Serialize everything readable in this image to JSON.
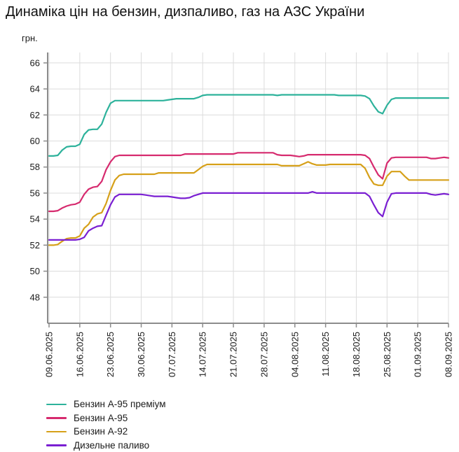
{
  "chart_data": {
    "type": "line",
    "title": "Динаміка цін на бензин, дизпаливо, газ на АЗС України",
    "y_axis_unit_label": "грн.",
    "ylim": [
      46,
      66.8
    ],
    "yticks": [
      48,
      50,
      52,
      54,
      56,
      58,
      60,
      62,
      64,
      66
    ],
    "x_tick_labels": [
      "09.06.2025",
      "16.06.2025",
      "23.06.2025",
      "30.06.2025",
      "07.07.2025",
      "14.07.2025",
      "21.07.2025",
      "28.07.2025",
      "04.08.2025",
      "11.08.2025",
      "18.08.2025",
      "25.08.2025",
      "01.09.2025",
      "08.09.2025"
    ],
    "x_tick_positions": [
      0,
      7,
      14,
      21,
      28,
      35,
      42,
      49,
      56,
      63,
      70,
      77,
      84,
      91
    ],
    "grid": true,
    "legend_position": "bottom-left",
    "colors": {
      "grid": "#dcdcdc",
      "axis": "#8c8c8c",
      "text": "#1a1a1a",
      "background": "#ffffff"
    },
    "series": [
      {
        "name": "Бензин А-95 преміум",
        "color": "#2db29b",
        "values": [
          58.85,
          58.85,
          58.9,
          59.3,
          59.55,
          59.6,
          59.6,
          59.75,
          60.5,
          60.85,
          60.9,
          60.9,
          61.3,
          62.2,
          62.9,
          63.1,
          63.1,
          63.1,
          63.1,
          63.1,
          63.1,
          63.1,
          63.1,
          63.1,
          63.1,
          63.1,
          63.1,
          63.15,
          63.2,
          63.25,
          63.25,
          63.25,
          63.25,
          63.25,
          63.35,
          63.5,
          63.55,
          63.55,
          63.55,
          63.55,
          63.55,
          63.55,
          63.55,
          63.55,
          63.55,
          63.55,
          63.55,
          63.55,
          63.55,
          63.55,
          63.55,
          63.55,
          63.5,
          63.55,
          63.55,
          63.55,
          63.55,
          63.55,
          63.55,
          63.55,
          63.55,
          63.55,
          63.55,
          63.55,
          63.55,
          63.55,
          63.5,
          63.5,
          63.5,
          63.5,
          63.5,
          63.5,
          63.45,
          63.25,
          62.7,
          62.25,
          62.1,
          62.75,
          63.2,
          63.3,
          63.3,
          63.3,
          63.3,
          63.3,
          63.3,
          63.3,
          63.3,
          63.3,
          63.3,
          63.3,
          63.3,
          63.3
        ]
      },
      {
        "name": "Бензин А-95",
        "color": "#d62a6e",
        "values": [
          54.6,
          54.6,
          54.65,
          54.85,
          55.0,
          55.1,
          55.15,
          55.3,
          55.9,
          56.3,
          56.45,
          56.5,
          56.9,
          57.8,
          58.4,
          58.8,
          58.9,
          58.9,
          58.9,
          58.9,
          58.9,
          58.9,
          58.9,
          58.9,
          58.9,
          58.9,
          58.9,
          58.9,
          58.9,
          58.9,
          58.9,
          59.0,
          59.0,
          59.0,
          59.0,
          59.0,
          59.0,
          59.0,
          59.0,
          59.0,
          59.0,
          59.0,
          59.0,
          59.1,
          59.1,
          59.1,
          59.1,
          59.1,
          59.1,
          59.1,
          59.1,
          59.1,
          58.95,
          58.9,
          58.9,
          58.9,
          58.85,
          58.8,
          58.85,
          58.95,
          58.95,
          58.95,
          58.95,
          58.95,
          58.95,
          58.95,
          58.95,
          58.95,
          58.95,
          58.95,
          58.95,
          58.95,
          58.9,
          58.65,
          58.0,
          57.4,
          57.1,
          58.3,
          58.7,
          58.75,
          58.75,
          58.75,
          58.75,
          58.75,
          58.75,
          58.75,
          58.75,
          58.65,
          58.65,
          58.7,
          58.75,
          58.7
        ]
      },
      {
        "name": "Бензин А-92",
        "color": "#d6a019",
        "values": [
          52.0,
          52.0,
          52.05,
          52.3,
          52.5,
          52.55,
          52.55,
          52.7,
          53.3,
          53.6,
          54.15,
          54.4,
          54.5,
          55.2,
          56.2,
          57.0,
          57.35,
          57.45,
          57.45,
          57.45,
          57.45,
          57.45,
          57.45,
          57.45,
          57.45,
          57.55,
          57.55,
          57.55,
          57.55,
          57.55,
          57.55,
          57.55,
          57.55,
          57.55,
          57.8,
          58.05,
          58.2,
          58.2,
          58.2,
          58.2,
          58.2,
          58.2,
          58.2,
          58.2,
          58.2,
          58.2,
          58.2,
          58.2,
          58.2,
          58.2,
          58.2,
          58.2,
          58.2,
          58.1,
          58.1,
          58.1,
          58.1,
          58.1,
          58.25,
          58.4,
          58.25,
          58.15,
          58.15,
          58.15,
          58.2,
          58.2,
          58.2,
          58.2,
          58.2,
          58.2,
          58.2,
          58.2,
          57.9,
          57.2,
          56.7,
          56.6,
          56.6,
          57.3,
          57.65,
          57.65,
          57.65,
          57.3,
          57.0,
          57.0,
          57.0,
          57.0,
          57.0,
          57.0,
          57.0,
          57.0,
          57.0,
          57.0
        ]
      },
      {
        "name": "Дизельне паливо",
        "color": "#7a1fd2",
        "values": [
          52.4,
          52.4,
          52.4,
          52.4,
          52.4,
          52.4,
          52.4,
          52.45,
          52.6,
          53.1,
          53.3,
          53.45,
          53.5,
          54.3,
          55.1,
          55.7,
          55.9,
          55.9,
          55.9,
          55.9,
          55.9,
          55.9,
          55.85,
          55.8,
          55.75,
          55.75,
          55.75,
          55.75,
          55.7,
          55.65,
          55.6,
          55.6,
          55.65,
          55.8,
          55.9,
          56.0,
          56.0,
          56.0,
          56.0,
          56.0,
          56.0,
          56.0,
          56.0,
          56.0,
          56.0,
          56.0,
          56.0,
          56.0,
          56.0,
          56.0,
          56.0,
          56.0,
          56.0,
          56.0,
          56.0,
          56.0,
          56.0,
          56.0,
          56.0,
          56.0,
          56.1,
          56.0,
          56.0,
          56.0,
          56.0,
          56.0,
          56.0,
          56.0,
          56.0,
          56.0,
          56.0,
          56.0,
          56.0,
          55.75,
          55.1,
          54.5,
          54.2,
          55.3,
          55.95,
          56.0,
          56.0,
          56.0,
          56.0,
          56.0,
          56.0,
          56.0,
          56.0,
          55.9,
          55.85,
          55.9,
          55.95,
          55.9
        ]
      }
    ]
  }
}
